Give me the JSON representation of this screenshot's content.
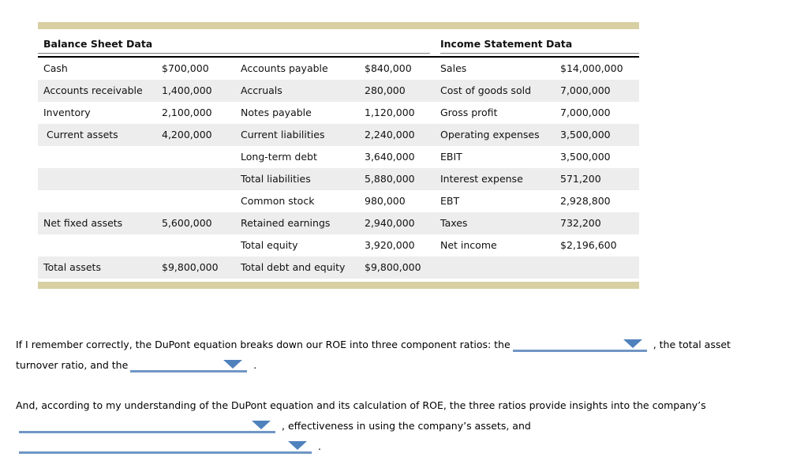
{
  "table": {
    "balance_sheet_header": "Balance Sheet Data",
    "income_statement_header": "Income Statement Data",
    "rows": [
      {
        "c1": "Cash",
        "c2": "$700,000",
        "c3": "Accounts payable",
        "c4": "$840,000",
        "c5": "Sales",
        "c6": "$14,000,000"
      },
      {
        "c1": "Accounts receivable",
        "c2": "1,400,000",
        "c3": "Accruals",
        "c4": "280,000",
        "c5": "Cost of goods sold",
        "c6": "7,000,000"
      },
      {
        "c1": "Inventory",
        "c2": "2,100,000",
        "c3": "Notes payable",
        "c4": "1,120,000",
        "c5": "Gross profit",
        "c6": "7,000,000"
      },
      {
        "c1": " Current assets",
        "c2": "4,200,000",
        "c3": "Current liabilities",
        "c4": "2,240,000",
        "c5": "Operating expenses",
        "c6": "3,500,000"
      },
      {
        "c1": "",
        "c2": "",
        "c3": "Long-term debt",
        "c4": "3,640,000",
        "c5": "EBIT",
        "c6": "3,500,000"
      },
      {
        "c1": "",
        "c2": "",
        "c3": "Total liabilities",
        "c4": "5,880,000",
        "c5": "Interest expense",
        "c6": "571,200"
      },
      {
        "c1": "",
        "c2": "",
        "c3": "Common stock",
        "c4": "980,000",
        "c5": "EBT",
        "c6": "2,928,800"
      },
      {
        "c1": "Net fixed assets",
        "c2": "5,600,000",
        "c3": "Retained earnings",
        "c4": "2,940,000",
        "c5": "Taxes",
        "c6": "732,200"
      },
      {
        "c1": "",
        "c2": "",
        "c3": "Total equity",
        "c4": "3,920,000",
        "c5": "Net income",
        "c6": "$2,196,600"
      },
      {
        "c1": "Total assets",
        "c2": "$9,800,000",
        "c3": "Total debt and equity",
        "c4": "$9,800,000",
        "c5": "",
        "c6": ""
      }
    ]
  },
  "question": {
    "p1_line1_before": "If I remember correctly, the DuPont equation breaks down our ROE into three component ratios: the",
    "p1_line1_after": ", the total asset",
    "p1_line2_before": "turnover ratio, and the",
    "p1_line2_after": ".",
    "p2_line1": "And, according to my understanding of the DuPont equation and its calculation of ROE, the three ratios provide insights into the company’s",
    "p2_line2_after": ", effectiveness in using the company’s assets, and",
    "p2_line3_after": "."
  },
  "dropdowns": [
    {
      "name": "roe-component-ratio-1",
      "value": ""
    },
    {
      "name": "roe-component-ratio-2",
      "value": ""
    },
    {
      "name": "insight-ratio-1",
      "value": ""
    },
    {
      "name": "insight-ratio-2",
      "value": ""
    }
  ],
  "colors": {
    "accent_bar": "#d8cfa3",
    "row_stripe": "#ededed",
    "dropdown_line": "#7096c5",
    "dropdown_arrow": "#4f81bd",
    "header_rule": "#808080",
    "table_rule": "#000000",
    "text": "#111111"
  }
}
